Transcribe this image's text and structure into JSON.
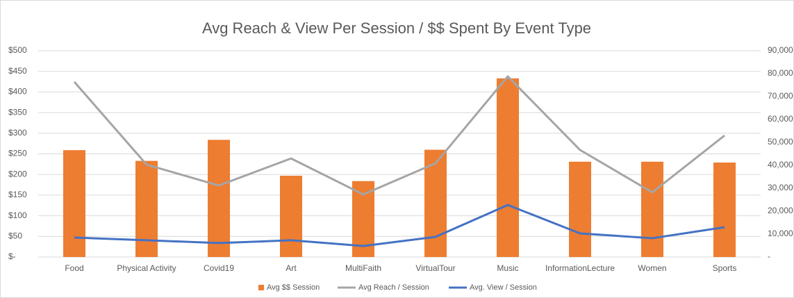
{
  "chart_data": {
    "type": "bar-line",
    "title": "Avg Reach & View Per Session /  $$ Spent By Event Type",
    "categories": [
      "Food",
      "Physical Activity",
      "Covid19",
      "Art",
      "MultiFaith",
      "VirtualTour",
      "Music",
      "InformationLecture",
      "Women",
      "Sports"
    ],
    "series": [
      {
        "name": "Avg $$ Session",
        "type": "bar",
        "color": "#ed7d31",
        "values": [
          259,
          233,
          284,
          197,
          184,
          260,
          433,
          231,
          231,
          229
        ]
      },
      {
        "name": "Avg Reach / Session",
        "type": "line",
        "axis": "y2",
        "color": "#a5a5a5",
        "values": [
          76400,
          40300,
          31200,
          43000,
          27300,
          40900,
          78800,
          46700,
          28200,
          53000
        ]
      },
      {
        "name": "Avg. View / Session",
        "type": "line",
        "axis": "y2",
        "color": "#4472c4",
        "values": [
          8500,
          7300,
          6100,
          7300,
          4800,
          8800,
          22700,
          10300,
          8200,
          13000
        ]
      }
    ],
    "ylim": [
      0,
      500
    ],
    "yticks": [
      {
        "value": 0,
        "label": "$-"
      },
      {
        "value": 50,
        "label": "$50"
      },
      {
        "value": 100,
        "label": "$100"
      },
      {
        "value": 150,
        "label": "$150"
      },
      {
        "value": 200,
        "label": "$200"
      },
      {
        "value": 250,
        "label": "$250"
      },
      {
        "value": 300,
        "label": "$300"
      },
      {
        "value": 350,
        "label": "$350"
      },
      {
        "value": 400,
        "label": "$400"
      },
      {
        "value": 450,
        "label": "$450"
      },
      {
        "value": 500,
        "label": "$500"
      }
    ],
    "y2lim": [
      0,
      90000
    ],
    "y2ticks": [
      {
        "value": 0,
        "label": "-"
      },
      {
        "value": 10000,
        "label": "10,000"
      },
      {
        "value": 20000,
        "label": "20,000"
      },
      {
        "value": 30000,
        "label": "30,000"
      },
      {
        "value": 40000,
        "label": "40,000"
      },
      {
        "value": 50000,
        "label": "50,000"
      },
      {
        "value": 60000,
        "label": "60,000"
      },
      {
        "value": 70000,
        "label": "70,000"
      },
      {
        "value": 80000,
        "label": "80,000"
      },
      {
        "value": 90000,
        "label": "90,000"
      }
    ],
    "grid": true,
    "legend": "bottom"
  }
}
